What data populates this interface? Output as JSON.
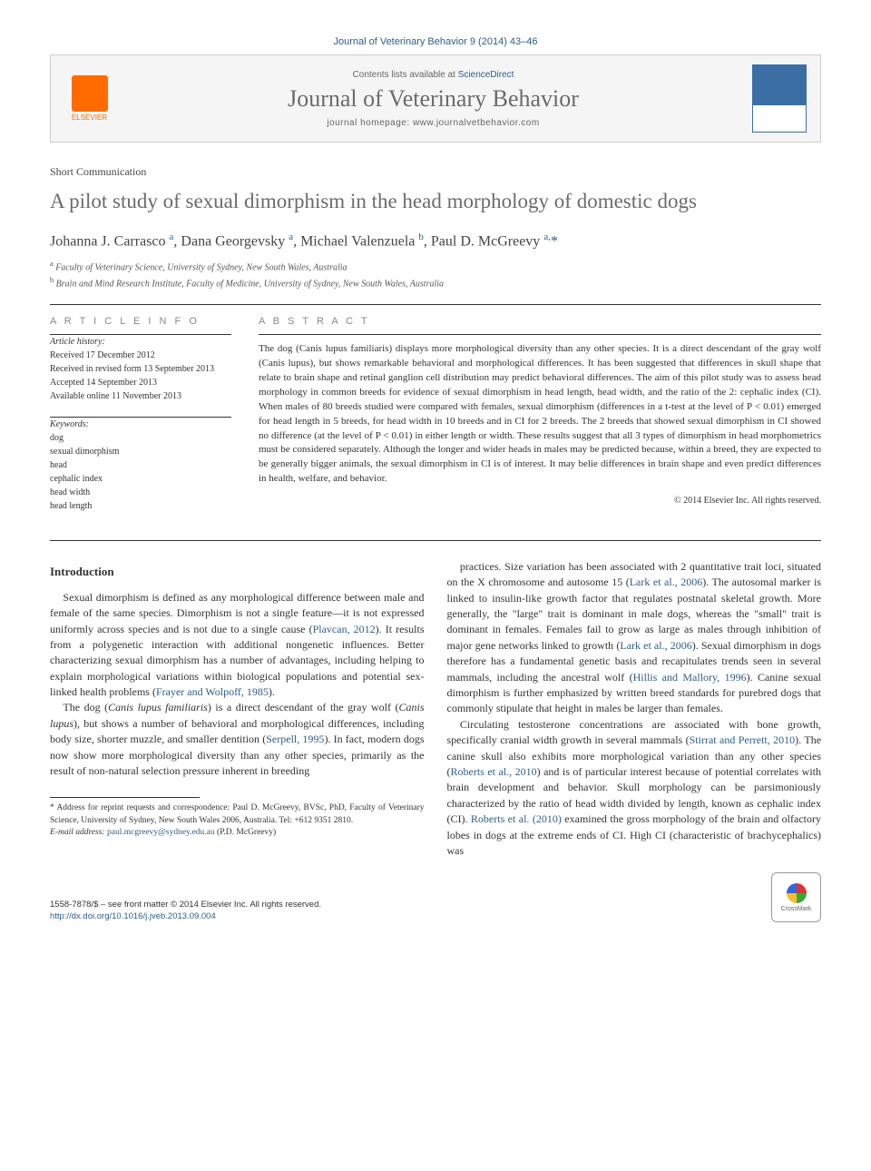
{
  "top_citation": "Journal of Veterinary Behavior 9 (2014) 43–46",
  "header": {
    "elsevier": "ELSEVIER",
    "contents_prefix": "Contents lists available at ",
    "contents_link": "ScienceDirect",
    "journal_name": "Journal of Veterinary Behavior",
    "homepage_prefix": "journal homepage: ",
    "homepage_url": "www.journalvetbehavior.com"
  },
  "article_type": "Short Communication",
  "title": "A pilot study of sexual dimorphism in the head morphology of domestic dogs",
  "authors_html": "Johanna J. Carrasco <sup>a</sup>, Dana Georgevsky <sup>a</sup>, Michael Valenzuela <sup>b</sup>, Paul D. McGreevy <sup>a,</sup><span class='star'>*</span>",
  "affiliations": {
    "a": "Faculty of Veterinary Science, University of Sydney, New South Wales, Australia",
    "b": "Brain and Mind Research Institute, Faculty of Medicine, University of Sydney, New South Wales, Australia"
  },
  "article_info": {
    "heading": "A R T I C L E  I N F O",
    "history_label": "Article history:",
    "received": "Received 17 December 2012",
    "revised": "Received in revised form 13 September 2013",
    "accepted": "Accepted 14 September 2013",
    "online": "Available online 11 November 2013",
    "keywords_label": "Keywords:",
    "keywords": [
      "dog",
      "sexual dimorphism",
      "head",
      "cephalic index",
      "head width",
      "head length"
    ]
  },
  "abstract": {
    "heading": "A B S T R A C T",
    "text": "The dog (Canis lupus familiaris) displays more morphological diversity than any other species. It is a direct descendant of the gray wolf (Canis lupus), but shows remarkable behavioral and morphological differences. It has been suggested that differences in skull shape that relate to brain shape and retinal ganglion cell distribution may predict behavioral differences. The aim of this pilot study was to assess head morphology in common breeds for evidence of sexual dimorphism in head length, head width, and the ratio of the 2: cephalic index (CI). When males of 80 breeds studied were compared with females, sexual dimorphism (differences in a t-test at the level of P < 0.01) emerged for head length in 5 breeds, for head width in 10 breeds and in CI for 2 breeds. The 2 breeds that showed sexual dimorphism in CI showed no difference (at the level of P < 0.01) in either length or width. These results suggest that all 3 types of dimorphism in head morphometrics must be considered separately. Although the longer and wider heads in males may be predicted because, within a breed, they are expected to be generally bigger animals, the sexual dimorphism in CI is of interest. It may belie differences in brain shape and even predict differences in health, welfare, and behavior.",
    "copyright": "© 2014 Elsevier Inc. All rights reserved."
  },
  "body": {
    "intro_heading": "Introduction",
    "p1": "Sexual dimorphism is defined as any morphological difference between male and female of the same species. Dimorphism is not a single feature—it is not expressed uniformly across species and is not due to a single cause (",
    "p1_cite": "Plavcan, 2012",
    "p1b": "). It results from a polygenetic interaction with additional nongenetic influences. Better characterizing sexual dimorphism has a number of advantages, including helping to explain morphological variations within biological populations and potential sex-linked health problems (",
    "p1_cite2": "Frayer and Wolpoff, 1985",
    "p1c": ").",
    "p2a": "The dog (",
    "p2_sp1": "Canis lupus familiaris",
    "p2b": ") is a direct descendant of the gray wolf (",
    "p2_sp2": "Canis lupus",
    "p2c": "), but shows a number of behavioral and morphological differences, including body size, shorter muzzle, and smaller dentition (",
    "p2_cite": "Serpell, 1995",
    "p2d": "). In fact, modern dogs now show more morphological diversity than any other species, primarily as the result of non-natural selection pressure inherent in breeding",
    "p3a": "practices. Size variation has been associated with 2 quantitative trait loci, situated on the X chromosome and autosome 15 (",
    "p3_cite1": "Lark et al., 2006",
    "p3b": "). The autosomal marker is linked to insulin-like growth factor that regulates postnatal skeletal growth. More generally, the \"large\" trait is dominant in male dogs, whereas the \"small\" trait is dominant in females. Females fail to grow as large as males through inhibition of major gene networks linked to growth (",
    "p3_cite2": "Lark et al., 2006",
    "p3c": "). Sexual dimorphism in dogs therefore has a fundamental genetic basis and recapitulates trends seen in several mammals, including the ancestral wolf (",
    "p3_cite3": "Hillis and Mallory, 1996",
    "p3d": "). Canine sexual dimorphism is further emphasized by written breed standards for purebred dogs that commonly stipulate that height in males be larger than females.",
    "p4a": "Circulating testosterone concentrations are associated with bone growth, specifically cranial width growth in several mammals (",
    "p4_cite1": "Stirrat and Perrett, 2010",
    "p4b": "). The canine skull also exhibits more morphological variation than any other species (",
    "p4_cite2": "Roberts et al., 2010",
    "p4c": ") and is of particular interest because of potential correlates with brain development and behavior. Skull morphology can be parsimoniously characterized by the ratio of head width divided by length, known as cephalic index (CI). ",
    "p4_cite3": "Roberts et al. (2010)",
    "p4d": " examined the gross morphology of the brain and olfactory lobes in dogs at the extreme ends of CI. High CI (characteristic of brachycephalics) was"
  },
  "footnotes": {
    "corr": "* Address for reprint requests and correspondence: Paul D. McGreevy, BVSc, PhD, Faculty of Veterinary Science, University of Sydney, New South Wales 2006, Australia. Tel: +612 9351 2810.",
    "email_label": "E-mail address: ",
    "email": "paul.mcgreevy@sydney.edu.au",
    "email_suffix": " (P.D. McGreevy)"
  },
  "footer": {
    "issn": "1558-7878/$ – see front matter © 2014 Elsevier Inc. All rights reserved.",
    "doi": "http://dx.doi.org/10.1016/j.jveb.2013.09.004",
    "crossmark": "CrossMark"
  },
  "colors": {
    "link": "#2e5c8a",
    "elsevier_orange": "#ff6b00",
    "heading_gray": "#6b6b6b"
  }
}
